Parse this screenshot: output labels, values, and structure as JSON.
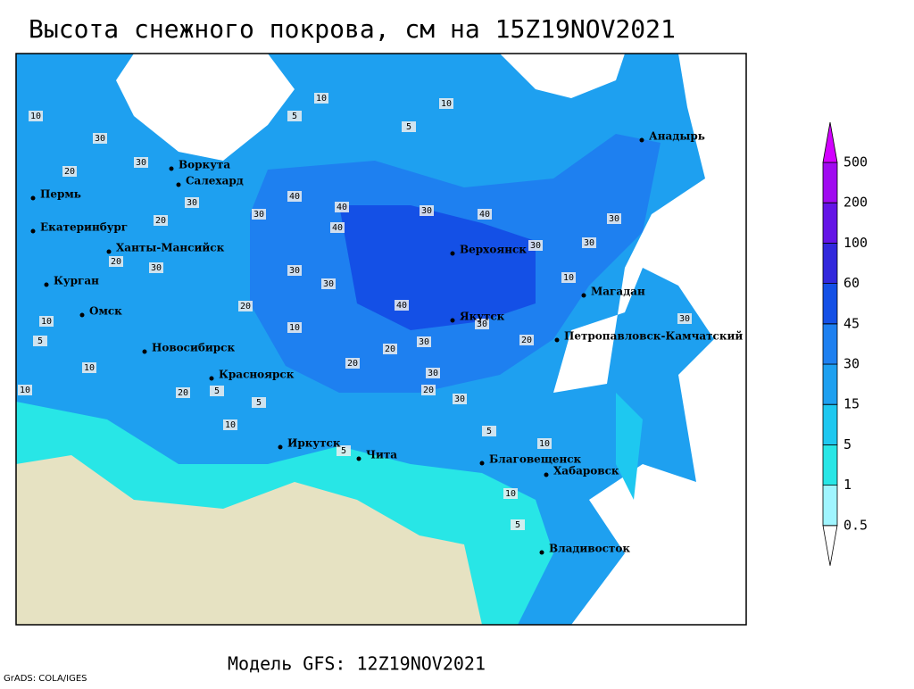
{
  "title": "Высота снежного покрова, см на 15Z19NOV2021",
  "footer": "Модель GFS: 12Z19NOV2021",
  "credit": "GrADS: COLA/IGES",
  "legend": {
    "levels": [
      0.5,
      1,
      5,
      15,
      30,
      45,
      60,
      100,
      200,
      500
    ],
    "colors": [
      "#ffffff",
      "#a0f5ff",
      "#28e6e6",
      "#1ec8f0",
      "#1ea0f0",
      "#1e80f0",
      "#1450e6",
      "#3228dc",
      "#6414e6",
      "#a00af0",
      "#d200ff"
    ]
  },
  "cities": [
    "Воркута",
    "Салехард",
    "Пермь",
    "Екатеринбург",
    "Ханты-Мансийск",
    "Курган",
    "Омск",
    "Новосибирск",
    "Красноярск",
    "Иркутск",
    "Чита",
    "Благовещенск",
    "Хабаровск",
    "Владивосток",
    "Якутск",
    "Верхоянск",
    "Магадан",
    "Петропавловск-Камчатский",
    "Анадырь"
  ],
  "contour_labels": [
    10,
    5,
    10,
    5,
    10,
    30,
    30,
    20,
    30,
    40,
    40,
    40,
    30,
    40,
    30,
    30,
    30,
    30,
    20,
    20,
    30,
    30,
    40,
    30,
    30,
    20,
    20,
    10,
    10,
    20,
    20,
    30,
    30,
    20,
    10,
    5,
    10,
    10,
    5,
    5,
    20,
    10,
    5,
    5,
    10,
    30,
    30,
    10,
    5
  ]
}
